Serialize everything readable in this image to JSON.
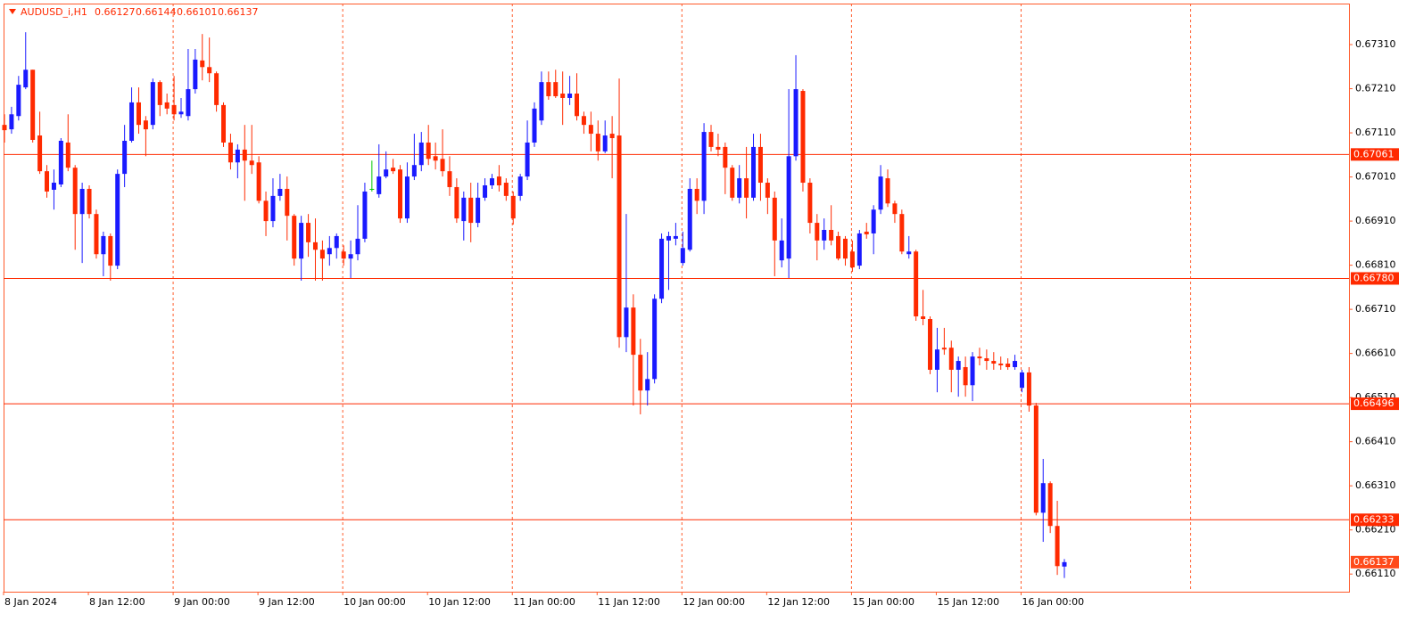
{
  "chart_data": {
    "type": "candlestick",
    "symbol": "AUDUSD_i,H1",
    "up_color": "#1a1aff",
    "down_color": "#ff2a00",
    "doji_color": "#00c800",
    "level_color": "#ff2a00",
    "xgrid": true,
    "ylim": [
      0.6607,
      0.67403
    ],
    "yticks": [
      {
        "value": 0.6731,
        "label": "0.67310"
      },
      {
        "value": 0.6721,
        "label": "0.67210"
      },
      {
        "value": 0.6711,
        "label": "0.67110"
      },
      {
        "value": 0.6701,
        "label": "0.67010"
      },
      {
        "value": 0.6691,
        "label": "0.66910"
      },
      {
        "value": 0.6681,
        "label": "0.66810"
      },
      {
        "value": 0.6671,
        "label": "0.66710"
      },
      {
        "value": 0.6661,
        "label": "0.66610"
      },
      {
        "value": 0.6651,
        "label": "0.66510"
      },
      {
        "value": 0.6641,
        "label": "0.66410"
      },
      {
        "value": 0.6631,
        "label": "0.66310"
      },
      {
        "value": 0.6621,
        "label": "0.66210"
      },
      {
        "value": 0.6611,
        "label": "0.66110"
      }
    ],
    "levels": [
      0.67061,
      {
        "value": 0.6678,
        "label": "0.66780"
      },
      0.66496,
      0.66233
    ],
    "categories": [
      "8 Jan 2024",
      null,
      null,
      null,
      null,
      null,
      null,
      null,
      null,
      null,
      null,
      null,
      "8 Jan 12:00",
      null,
      null,
      null,
      null,
      null,
      null,
      null,
      null,
      null,
      null,
      null,
      "9 Jan 00:00",
      null,
      null,
      null,
      null,
      null,
      null,
      null,
      null,
      null,
      null,
      null,
      "9 Jan 12:00",
      null,
      null,
      null,
      null,
      null,
      null,
      null,
      null,
      null,
      null,
      null,
      "10 Jan 00:00",
      null,
      null,
      null,
      null,
      null,
      null,
      null,
      null,
      null,
      null,
      null,
      "10 Jan 12:00",
      null,
      null,
      null,
      null,
      null,
      null,
      null,
      null,
      null,
      null,
      null,
      "11 Jan 00:00",
      null,
      null,
      null,
      null,
      null,
      null,
      null,
      null,
      null,
      null,
      null,
      "11 Jan 12:00",
      null,
      null,
      null,
      null,
      null,
      null,
      null,
      null,
      null,
      null,
      null,
      "12 Jan 00:00",
      null,
      null,
      null,
      null,
      null,
      null,
      null,
      null,
      null,
      null,
      null,
      "12 Jan 12:00",
      null,
      null,
      null,
      null,
      null,
      null,
      null,
      null,
      null,
      null,
      null,
      "15 Jan 00:00",
      null,
      null,
      null,
      null,
      null,
      null,
      null,
      null,
      null,
      null,
      null,
      "15 Jan 12:00",
      null,
      null,
      null,
      null,
      null,
      null,
      null,
      null,
      null,
      null,
      null,
      "16 Jan 00:00",
      null,
      null,
      null,
      null,
      null,
      null
    ],
    "open": [
      0.67128,
      0.67118,
      0.67148,
      0.67213,
      0.67253,
      0.67104,
      0.67023,
      0.66981,
      0.66993,
      0.67088,
      0.67031,
      0.66926,
      0.66983,
      0.66926,
      0.66835,
      0.66876,
      0.66809,
      0.67017,
      0.67092,
      0.67179,
      0.67138,
      0.67128,
      0.67225,
      0.67179,
      0.67173,
      0.67152,
      0.67148,
      0.67209,
      0.67274,
      0.67259,
      0.67245,
      0.67173,
      0.67088,
      0.67043,
      0.67072,
      0.67047,
      0.67043,
      0.66956,
      0.6691,
      0.66967,
      0.66983,
      0.66922,
      0.66825,
      0.66906,
      0.66862,
      0.66845,
      0.66835,
      0.66849,
      0.66841,
      0.66825,
      0.66835,
      0.6687,
      0.66983,
      0.66971,
      0.67011,
      0.67031,
      0.67027,
      0.66916,
      0.67011,
      0.67037,
      0.67088,
      0.67057,
      0.67051,
      0.67023,
      0.66987,
      0.6691,
      0.66963,
      0.66906,
      0.66963,
      0.66991,
      0.67011,
      0.66997,
      0.66967,
      0.66967,
      0.67011,
      0.67088,
      0.67138,
      0.67225,
      0.67225,
      0.67199,
      0.67189,
      0.67199,
      0.67148,
      0.67128,
      0.67108,
      0.67068,
      0.67108,
      0.67104,
      0.66647,
      0.66714,
      0.66607,
      0.66526,
      0.66552,
      0.66734,
      0.66866,
      0.6687,
      0.66815,
      0.66845,
      0.66983,
      0.66956,
      0.67112,
      0.67078,
      0.67078,
      0.67031,
      0.66963,
      0.67007,
      0.66963,
      0.67078,
      0.66997,
      0.66963,
      0.66821,
      0.66825,
      0.67057,
      0.67205,
      0.66997,
      0.66906,
      0.66866,
      0.6689,
      0.66876,
      0.6687,
      0.66841,
      0.66809,
      0.66886,
      0.66882,
      0.66936,
      0.67007,
      0.6695,
      0.66926,
      0.66835,
      0.66841,
      0.66694,
      0.66688,
      0.66573,
      0.66623,
      0.66623,
      0.66573,
      0.66579,
      0.66538,
      0.66603,
      0.66599,
      0.66593,
      0.66587,
      0.66587,
      0.66579,
      0.66532,
      0.66567,
      0.66492,
      0.66249,
      0.66316,
      0.66219,
      0.66127
    ],
    "high": [
      0.67152,
      0.67169,
      0.67239,
      0.67338,
      0.67253,
      0.67158,
      0.67037,
      0.67027,
      0.67098,
      0.67152,
      0.67037,
      0.66997,
      0.66991,
      0.66936,
      0.66886,
      0.66882,
      0.67027,
      0.67128,
      0.67213,
      0.67213,
      0.67148,
      0.67233,
      0.67229,
      0.67199,
      0.67239,
      0.67189,
      0.673,
      0.673,
      0.67334,
      0.67326,
      0.67249,
      0.67179,
      0.67108,
      0.67084,
      0.67128,
      0.67128,
      0.67057,
      0.66977,
      0.67007,
      0.67017,
      0.67011,
      0.66926,
      0.66922,
      0.66926,
      0.66916,
      0.66866,
      0.66876,
      0.66882,
      0.66855,
      0.66866,
      0.66946,
      0.66997,
      0.67047,
      0.67084,
      0.67068,
      0.67051,
      0.67037,
      0.67043,
      0.67108,
      0.67112,
      0.67128,
      0.67088,
      0.67118,
      0.67057,
      0.67007,
      0.66977,
      0.66997,
      0.66997,
      0.67007,
      0.67017,
      0.67037,
      0.67007,
      0.66977,
      0.67017,
      0.67138,
      0.67179,
      0.67249,
      0.67249,
      0.67253,
      0.67249,
      0.67239,
      0.67245,
      0.67158,
      0.67158,
      0.67138,
      0.67138,
      0.67148,
      0.67233,
      0.66926,
      0.66744,
      0.66643,
      0.66613,
      0.66744,
      0.66882,
      0.66886,
      0.66906,
      0.66886,
      0.67007,
      0.67007,
      0.67132,
      0.67128,
      0.67108,
      0.67088,
      0.67037,
      0.67037,
      0.67078,
      0.67108,
      0.67108,
      0.67007,
      0.66977,
      0.66916,
      0.67209,
      0.67286,
      0.67209,
      0.67007,
      0.66926,
      0.66916,
      0.66946,
      0.66886,
      0.66876,
      0.66866,
      0.6689,
      0.66906,
      0.66946,
      0.67037,
      0.67027,
      0.66956,
      0.66936,
      0.66876,
      0.66845,
      0.66754,
      0.66694,
      0.66668,
      0.66668,
      0.66639,
      0.66603,
      0.66603,
      0.66613,
      0.66623,
      0.66619,
      0.66613,
      0.66603,
      0.66599,
      0.66607,
      0.66573,
      0.66579,
      0.66498,
      0.66371,
      0.6632,
      0.66276,
      0.66144
    ],
    "low": [
      0.67088,
      0.67108,
      0.67138,
      0.67209,
      0.67088,
      0.67017,
      0.66963,
      0.66936,
      0.66987,
      0.67023,
      0.66845,
      0.66815,
      0.66916,
      0.66825,
      0.66785,
      0.66775,
      0.66801,
      0.66987,
      0.67088,
      0.67108,
      0.67057,
      0.67118,
      0.67148,
      0.67152,
      0.67138,
      0.67144,
      0.67138,
      0.67199,
      0.67229,
      0.67225,
      0.67158,
      0.67078,
      0.67027,
      0.67007,
      0.66956,
      0.67017,
      0.6695,
      0.66876,
      0.66896,
      0.66956,
      0.66866,
      0.66809,
      0.66775,
      0.66829,
      0.66775,
      0.66775,
      0.66809,
      0.66825,
      0.66809,
      0.66781,
      0.66821,
      0.66862,
      0.66977,
      0.66963,
      0.67007,
      0.67017,
      0.66906,
      0.66906,
      0.67003,
      0.67023,
      0.67037,
      0.67027,
      0.67011,
      0.66967,
      0.66906,
      0.66866,
      0.66862,
      0.66896,
      0.66956,
      0.66983,
      0.66977,
      0.66956,
      0.66902,
      0.66956,
      0.67003,
      0.67078,
      0.67128,
      0.67185,
      0.67189,
      0.67128,
      0.67173,
      0.67138,
      0.67108,
      0.67068,
      0.67047,
      0.67064,
      0.67007,
      0.66623,
      0.66613,
      0.66492,
      0.66472,
      0.66492,
      0.66542,
      0.66724,
      0.66754,
      0.66855,
      0.66809,
      0.66841,
      0.66926,
      0.66926,
      0.67068,
      0.67057,
      0.66971,
      0.66956,
      0.6695,
      0.66916,
      0.66956,
      0.66956,
      0.66926,
      0.66785,
      0.66805,
      0.66781,
      0.67047,
      0.66977,
      0.66882,
      0.66821,
      0.66845,
      0.66855,
      0.66821,
      0.66809,
      0.66795,
      0.66801,
      0.6687,
      0.66835,
      0.66926,
      0.66942,
      0.66906,
      0.66835,
      0.66825,
      0.66684,
      0.66674,
      0.66563,
      0.66522,
      0.66607,
      0.66522,
      0.66512,
      0.66512,
      0.66502,
      0.66583,
      0.66573,
      0.66573,
      0.66573,
      0.66573,
      0.66573,
      0.66522,
      0.66478,
      0.66243,
      0.66183,
      0.66203,
      0.66108,
      0.66101
    ],
    "close": [
      0.67116,
      0.67152,
      0.67219,
      0.67253,
      0.67094,
      0.67023,
      0.66977,
      0.66997,
      0.67092,
      0.67031,
      0.66926,
      0.66983,
      0.66926,
      0.66835,
      0.66876,
      0.66809,
      0.67017,
      0.67092,
      0.67179,
      0.67128,
      0.67118,
      0.67225,
      0.67173,
      0.67165,
      0.67152,
      0.67158,
      0.67209,
      0.67276,
      0.67259,
      0.67245,
      0.67173,
      0.67088,
      0.67043,
      0.67072,
      0.67047,
      0.67037,
      0.66956,
      0.6691,
      0.66967,
      0.66983,
      0.66922,
      0.66825,
      0.66906,
      0.66862,
      0.66845,
      0.66825,
      0.66849,
      0.66876,
      0.66825,
      0.66835,
      0.6687,
      0.66977,
      0.66983,
      0.67011,
      0.67027,
      0.67023,
      0.66916,
      0.67011,
      0.67037,
      0.67088,
      0.67051,
      0.67047,
      0.67023,
      0.66987,
      0.66916,
      0.66963,
      0.66906,
      0.66963,
      0.66991,
      0.67007,
      0.66991,
      0.66967,
      0.66916,
      0.67011,
      0.67088,
      0.67165,
      0.67225,
      0.67193,
      0.67193,
      0.67189,
      0.67199,
      0.67148,
      0.67128,
      0.67108,
      0.67068,
      0.67104,
      0.67098,
      0.66647,
      0.66714,
      0.66607,
      0.66526,
      0.66552,
      0.66734,
      0.6687,
      0.66876,
      0.66876,
      0.66849,
      0.66983,
      0.66956,
      0.67112,
      0.67078,
      0.67072,
      0.67031,
      0.66963,
      0.67007,
      0.66963,
      0.67078,
      0.66997,
      0.66963,
      0.66866,
      0.66866,
      0.67057,
      0.67209,
      0.66997,
      0.66906,
      0.66866,
      0.6689,
      0.66866,
      0.66825,
      0.66825,
      0.66805,
      0.66882,
      0.6688,
      0.66936,
      0.67011,
      0.6695,
      0.66926,
      0.66841,
      0.66841,
      0.66694,
      0.66688,
      0.66573,
      0.66619,
      0.66619,
      0.66573,
      0.66593,
      0.66538,
      0.66603,
      0.66599,
      0.66593,
      0.66587,
      0.66583,
      0.66579,
      0.66593,
      0.66567,
      0.66492,
      0.66249,
      0.66316,
      0.66219,
      0.66128,
      0.66137
    ]
  }
}
